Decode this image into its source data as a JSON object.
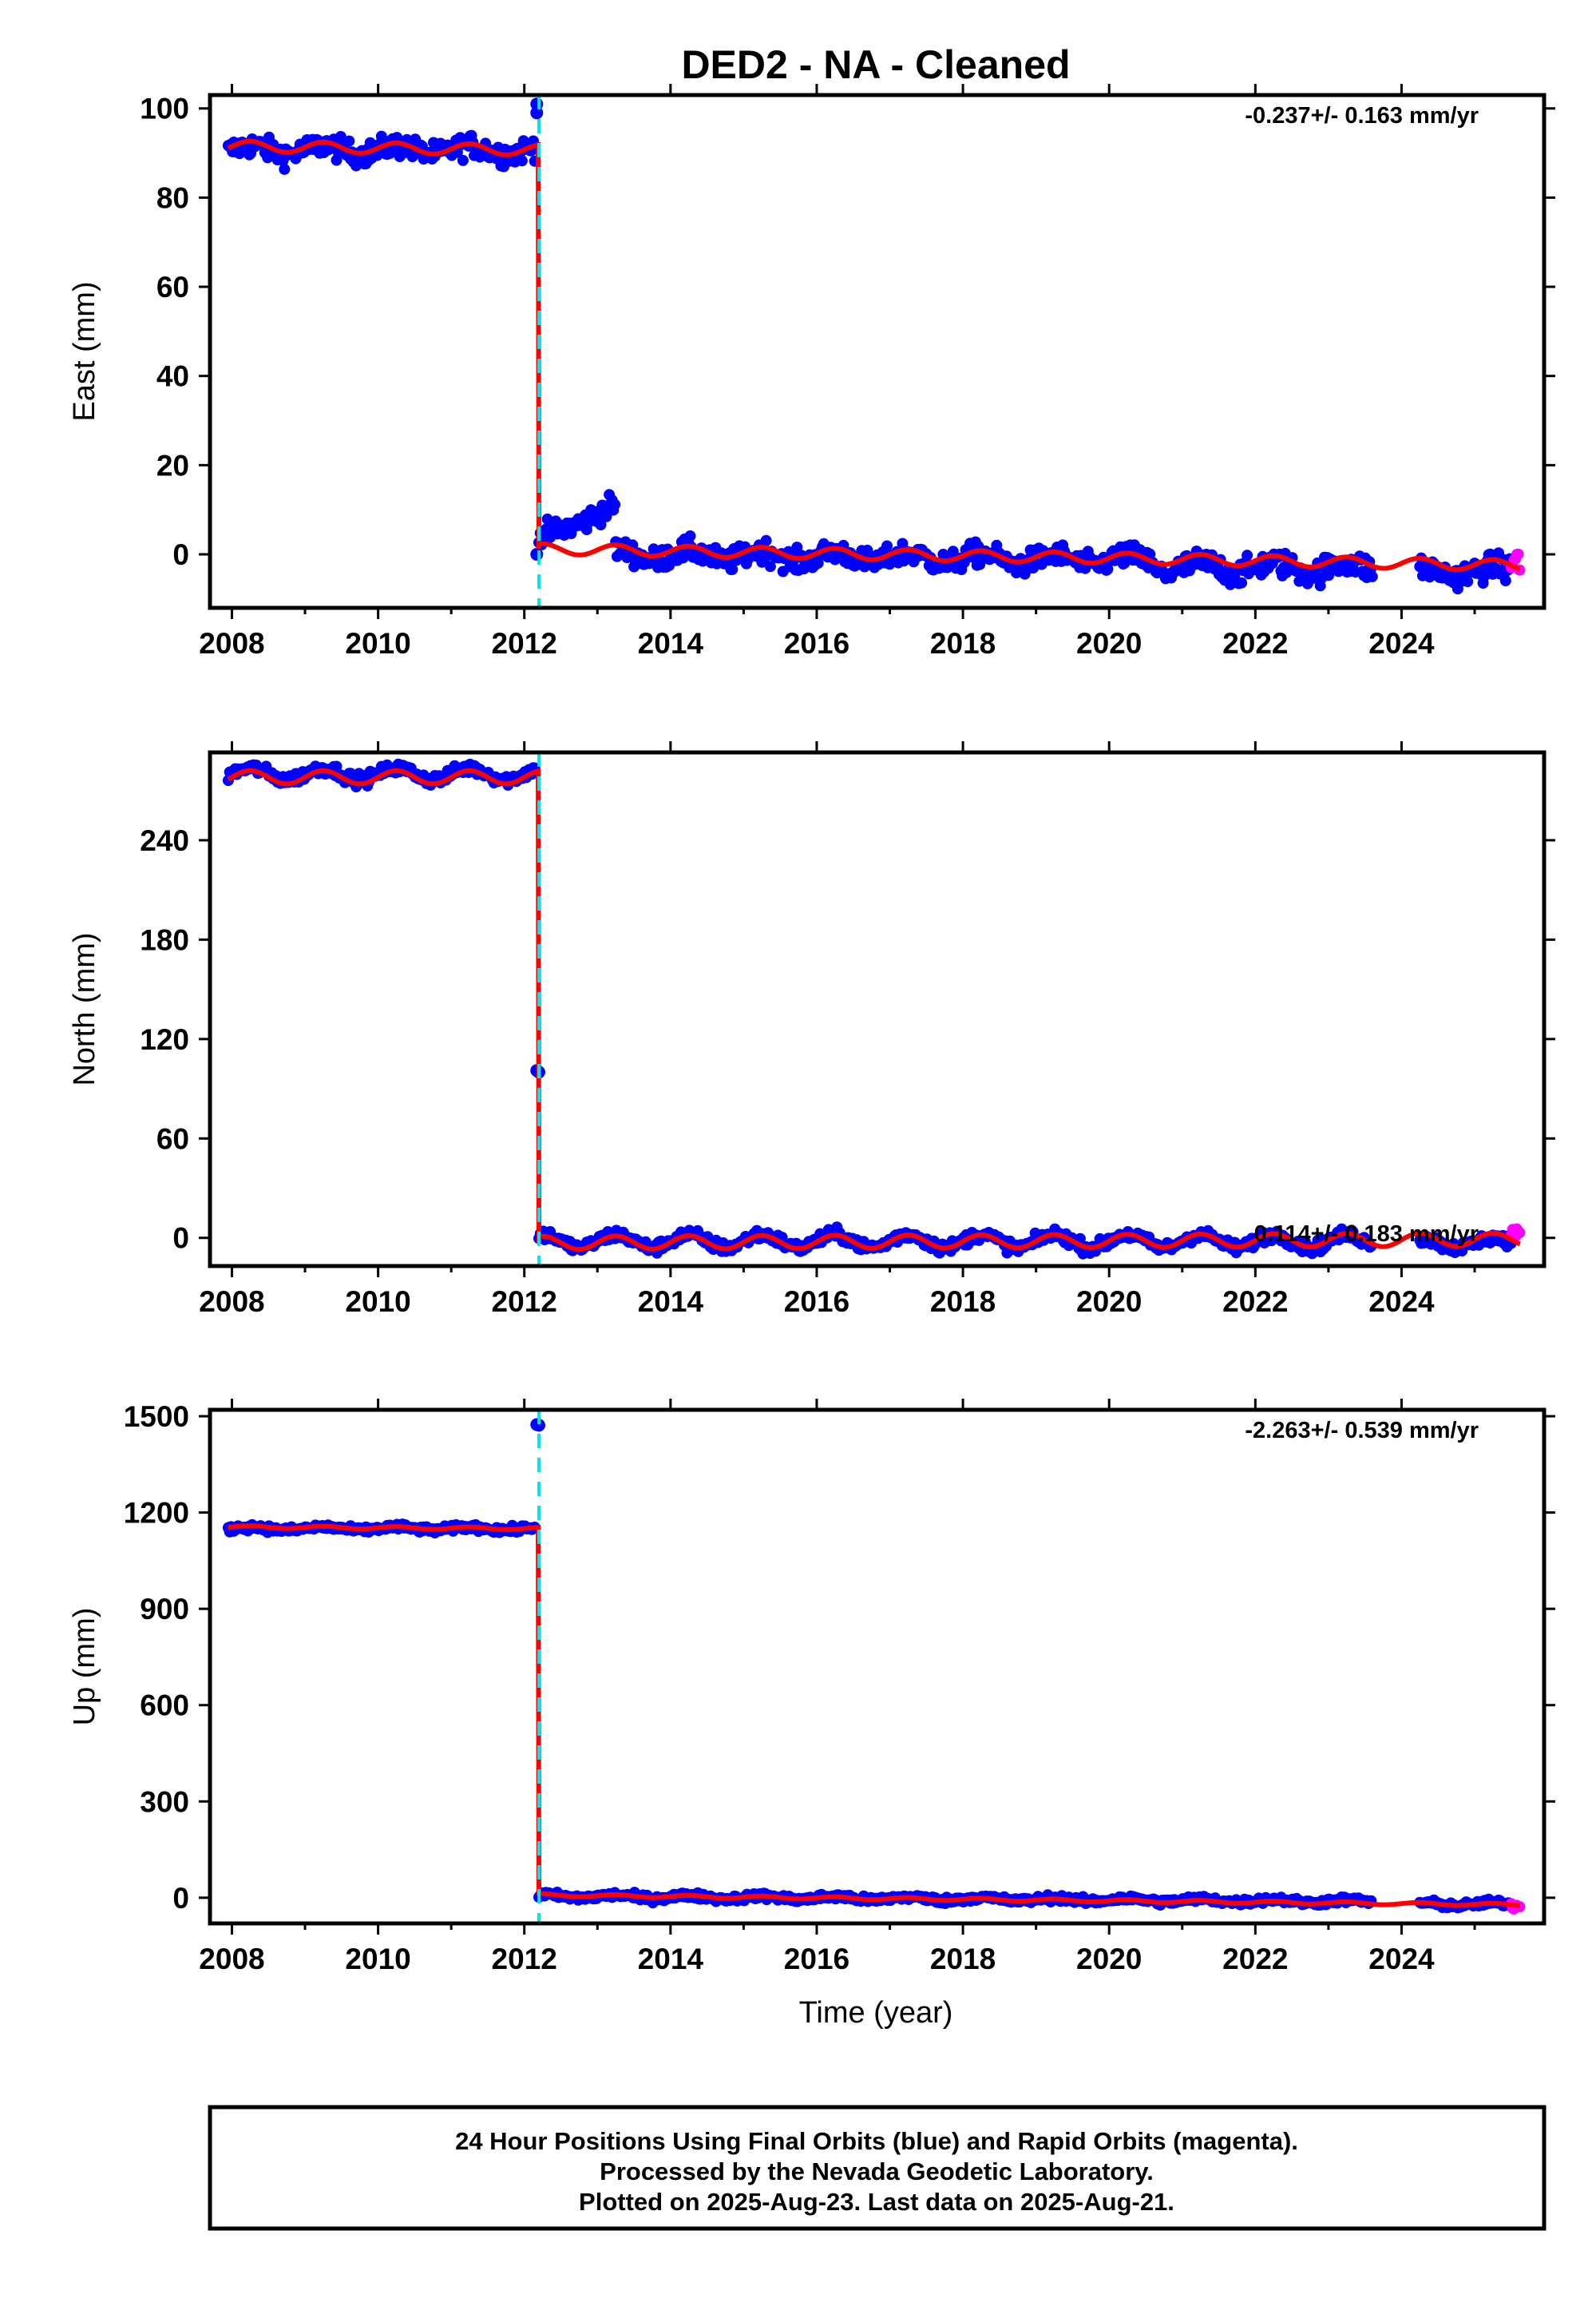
{
  "title": "DED2  - NA - Cleaned",
  "colors": {
    "final": "#0000ff",
    "rapid": "#ff00ff",
    "model": "#ff0000",
    "offset": "#00e5ee",
    "frame": "#000000"
  },
  "x_axis_label": "Time (year)",
  "footer": {
    "line1": "24 Hour Positions Using Final Orbits (blue) and Rapid Orbits (magenta).",
    "line2": "Processed by the Nevada Geodetic Laboratory.",
    "line3": "Plotted on 2025-Aug-23. Last data on 2025-Aug-21."
  },
  "chart_data": [
    {
      "type": "scatter",
      "ylabel": "East (mm)",
      "rate_label": "-0.237+/- 0.163 mm/yr",
      "xlim": [
        2007.7,
        2025.95
      ],
      "ylim": [
        -12,
        103
      ],
      "x_ticks": [
        2008,
        2010,
        2012,
        2014,
        2016,
        2018,
        2020,
        2022,
        2024
      ],
      "y_ticks": [
        0,
        20,
        40,
        60,
        80,
        100
      ],
      "offset_epoch": 2012.2,
      "outliers": [
        [
          2012.17,
          101
        ],
        [
          2012.17,
          99
        ],
        [
          2012.17,
          0
        ]
      ],
      "segments": [
        {
          "start": 2007.95,
          "end": 2012.15,
          "base": 90.7,
          "trend": 0,
          "amp": 1.0,
          "noise": 1.8,
          "color": "final"
        },
        {
          "start": 2012.2,
          "end": 2013.25,
          "base": 3.5,
          "trend": 7.0,
          "amp": 0.5,
          "noise": 1.8,
          "color": "final"
        },
        {
          "start": 2013.25,
          "end": 2020.6,
          "base": 0.0,
          "trend": -0.2,
          "amp": 1.2,
          "noise": 1.8,
          "color": "final"
        },
        {
          "start": 2020.6,
          "end": 2023.6,
          "base": -3.0,
          "trend": 0,
          "amp": 1.2,
          "noise": 2.0,
          "color": "final"
        },
        {
          "start": 2024.25,
          "end": 2025.5,
          "base": -3.8,
          "trend": 0,
          "amp": 1.0,
          "noise": 2.0,
          "color": "final"
        },
        {
          "start": 2025.5,
          "end": 2025.63,
          "base": -1.5,
          "trend": 0,
          "amp": 0,
          "noise": 2.5,
          "color": "rapid"
        }
      ],
      "model": [
        [
          2007.95,
          91.5
        ],
        [
          2012.2,
          90.7
        ],
        [
          2012.2,
          1.2
        ],
        [
          2020.6,
          -1.0
        ],
        [
          2025.63,
          -2.5
        ]
      ],
      "model_seasonal_amp": 1.2
    },
    {
      "type": "scatter",
      "ylabel": "North (mm)",
      "rate_label": "0.114+/- 0.183 mm/yr",
      "xlim": [
        2007.7,
        2025.95
      ],
      "ylim": [
        -17,
        293
      ],
      "x_ticks": [
        2008,
        2010,
        2012,
        2014,
        2016,
        2018,
        2020,
        2022,
        2024
      ],
      "y_ticks": [
        0,
        60,
        120,
        180,
        240
      ],
      "offset_epoch": 2012.2,
      "outliers": [
        [
          2012.17,
          101
        ],
        [
          2012.2,
          100
        ]
      ],
      "segments": [
        {
          "start": 2007.95,
          "end": 2012.15,
          "base": 280,
          "trend": 0,
          "amp": 3.5,
          "noise": 2.5,
          "color": "final"
        },
        {
          "start": 2012.2,
          "end": 2023.6,
          "base": -2.0,
          "trend": 0,
          "amp": 4.0,
          "noise": 2.5,
          "color": "final"
        },
        {
          "start": 2024.25,
          "end": 2025.5,
          "base": -3.0,
          "trend": 0,
          "amp": 3.0,
          "noise": 2.5,
          "color": "final"
        },
        {
          "start": 2025.5,
          "end": 2025.63,
          "base": 2.0,
          "trend": 0,
          "amp": 0,
          "noise": 2.5,
          "color": "rapid"
        }
      ],
      "model": [
        [
          2007.95,
          278
        ],
        [
          2012.2,
          278
        ],
        [
          2012.2,
          -3
        ],
        [
          2025.63,
          -1
        ]
      ],
      "model_seasonal_amp": 4.0
    },
    {
      "type": "scatter",
      "ylabel": "Up (mm)",
      "rate_label": "-2.263+/- 0.539 mm/yr",
      "xlim": [
        2007.7,
        2025.95
      ],
      "ylim": [
        -80,
        1520
      ],
      "x_ticks": [
        2008,
        2010,
        2012,
        2014,
        2016,
        2018,
        2020,
        2022,
        2024
      ],
      "y_ticks": [
        0,
        300,
        600,
        900,
        1200,
        1500
      ],
      "offset_epoch": 2012.2,
      "outliers": [
        [
          2012.17,
          1474
        ],
        [
          2012.2,
          1472
        ]
      ],
      "segments": [
        {
          "start": 2007.95,
          "end": 2012.15,
          "base": 1150,
          "trend": 0,
          "amp": 5,
          "noise": 7,
          "color": "final"
        },
        {
          "start": 2012.2,
          "end": 2023.6,
          "base": 5,
          "trend": -1.5,
          "amp": 5,
          "noise": 7,
          "color": "final"
        },
        {
          "start": 2024.25,
          "end": 2025.5,
          "base": -20,
          "trend": 0,
          "amp": 5,
          "noise": 7,
          "color": "final"
        },
        {
          "start": 2025.5,
          "end": 2025.63,
          "base": -25,
          "trend": 0,
          "amp": 0,
          "noise": 8,
          "color": "rapid"
        }
      ],
      "model": [
        [
          2007.95,
          1155
        ],
        [
          2012.2,
          1150
        ],
        [
          2012.2,
          8
        ],
        [
          2025.63,
          -22
        ]
      ],
      "model_seasonal_amp": 4
    }
  ]
}
